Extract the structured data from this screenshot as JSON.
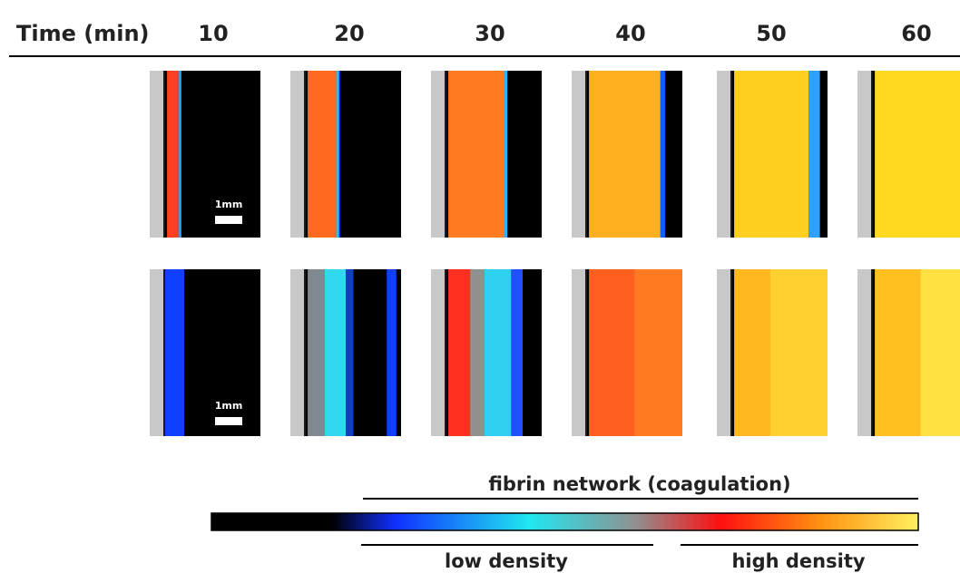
{
  "header": {
    "label": "Time (min)",
    "times": [
      "10",
      "20",
      "30",
      "40",
      "50",
      "60"
    ]
  },
  "scale_bars": [
    "1mm",
    "1mm"
  ],
  "colorbar": {
    "top_label": "fibrin network (coagulation)",
    "low_label": "low density",
    "high_label": "high density"
  }
}
